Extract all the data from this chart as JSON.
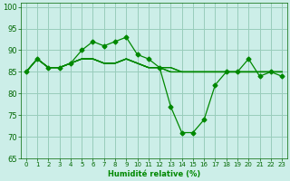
{
  "xlabel": "Humidité relative (%)",
  "xlim": [
    -0.5,
    23.5
  ],
  "ylim": [
    65,
    101
  ],
  "yticks": [
    65,
    70,
    75,
    80,
    85,
    90,
    95,
    100
  ],
  "xticks": [
    0,
    1,
    2,
    3,
    4,
    5,
    6,
    7,
    8,
    9,
    10,
    11,
    12,
    13,
    14,
    15,
    16,
    17,
    18,
    19,
    20,
    21,
    22,
    23
  ],
  "background_color": "#cceee8",
  "grid_color": "#99ccbb",
  "line_color": "#008800",
  "series": [
    {
      "x": [
        0,
        1,
        2,
        3,
        4,
        5,
        6,
        7,
        8,
        9,
        10,
        11,
        12,
        13,
        14,
        15,
        16,
        17,
        18,
        19,
        20,
        21,
        22,
        23
      ],
      "y": [
        85,
        88,
        86,
        86,
        87,
        90,
        92,
        91,
        92,
        93,
        89,
        88,
        86,
        77,
        71,
        71,
        74,
        82,
        85,
        85,
        88,
        84,
        85,
        84
      ],
      "marker": "D",
      "markersize": 2.5
    },
    {
      "x": [
        0,
        1,
        2,
        3,
        4,
        5,
        6,
        7,
        8,
        9,
        10,
        11,
        12,
        13,
        14,
        15,
        16,
        17,
        18,
        19,
        20,
        21,
        22,
        23
      ],
      "y": [
        85,
        88,
        86,
        86,
        87,
        88,
        88,
        87,
        87,
        88,
        87,
        86,
        86,
        86,
        85,
        85,
        85,
        85,
        85,
        85,
        85,
        85,
        85,
        85
      ],
      "marker": null,
      "markersize": 0
    },
    {
      "x": [
        0,
        1,
        2,
        3,
        4,
        5,
        6,
        7,
        8,
        9,
        10,
        11,
        12,
        13,
        14,
        15,
        16,
        17,
        18,
        19,
        20,
        21,
        22,
        23
      ],
      "y": [
        85,
        88,
        86,
        86,
        87,
        88,
        88,
        87,
        87,
        88,
        87,
        86,
        86,
        86,
        85,
        85,
        85,
        85,
        85,
        85,
        85,
        85,
        85,
        85
      ],
      "marker": null,
      "markersize": 0
    },
    {
      "x": [
        0,
        1,
        2,
        3,
        4,
        5,
        6,
        7,
        8,
        9,
        10,
        11,
        12,
        13,
        14,
        15,
        16,
        17,
        18,
        19,
        20,
        21,
        22,
        23
      ],
      "y": [
        85,
        88,
        86,
        86,
        87,
        88,
        88,
        87,
        87,
        88,
        87,
        86,
        86,
        85,
        85,
        85,
        85,
        85,
        85,
        85,
        85,
        85,
        85,
        85
      ],
      "marker": null,
      "markersize": 0
    },
    {
      "x": [
        0,
        1,
        2,
        3,
        4,
        5,
        6,
        7,
        8,
        9,
        10,
        11,
        12,
        13,
        14,
        15,
        16,
        17,
        18,
        19,
        20,
        21,
        22,
        23
      ],
      "y": [
        85,
        88,
        86,
        86,
        87,
        88,
        88,
        87,
        87,
        88,
        87,
        86,
        86,
        85,
        85,
        85,
        85,
        85,
        85,
        85,
        85,
        85,
        85,
        85
      ],
      "marker": null,
      "markersize": 0
    }
  ]
}
